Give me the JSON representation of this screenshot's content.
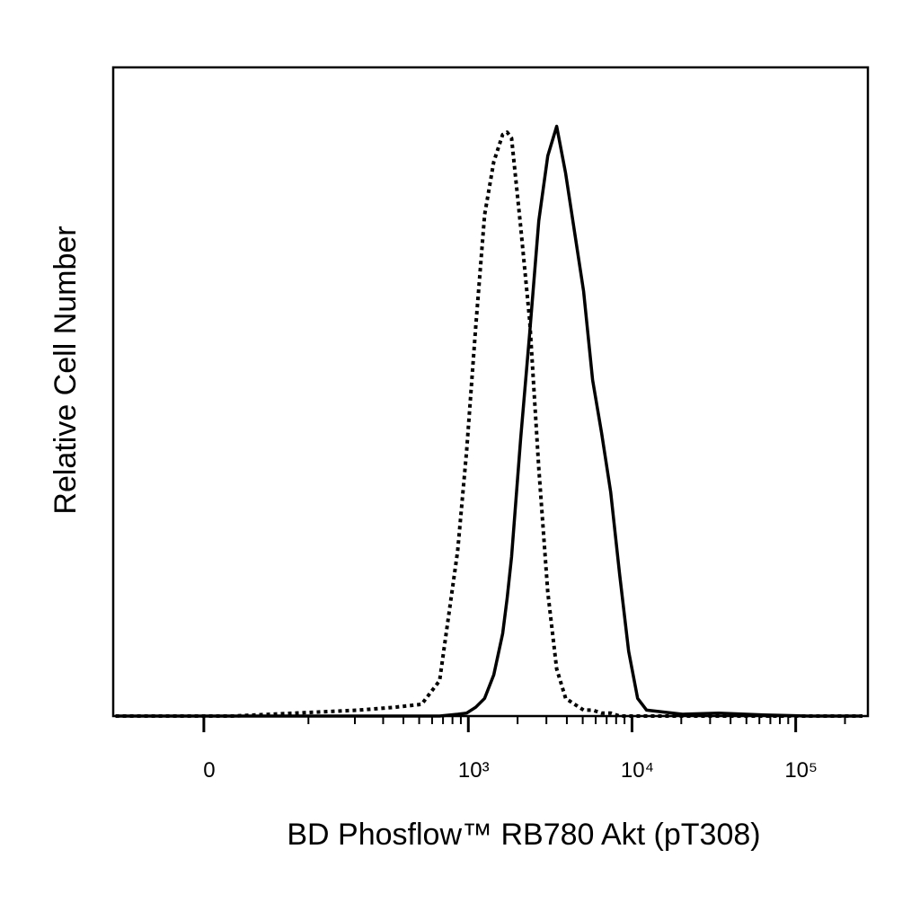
{
  "chart_data": {
    "type": "line",
    "x_label": "BD Phosflow™ RB780 Akt (pT308)",
    "y_label": "Relative Cell Number",
    "xscale": "asinh",
    "xscale_cofactor": 48.5,
    "xlim": [
      -80,
      276000
    ],
    "ylim": [
      0,
      110
    ],
    "xticks": [
      0,
      {
        "value": 1000,
        "label": "10³"
      },
      {
        "value": 10000,
        "label": "10⁴"
      },
      {
        "value": 100000,
        "label": "10⁵"
      }
    ],
    "xminorticks": [
      100,
      200,
      300,
      400,
      500,
      600,
      700,
      800,
      900,
      2000,
      3000,
      4000,
      5000,
      6000,
      7000,
      8000,
      9000,
      20000,
      30000,
      40000,
      50000,
      60000,
      70000,
      80000,
      90000,
      200000
    ],
    "x": [
      -77,
      -18,
      20,
      81,
      211,
      354,
      518,
      667,
      860,
      977,
      1109,
      1258,
      1430,
      1621,
      1727,
      1837,
      2088,
      2372,
      2694,
      3057,
      3465,
      3933,
      4463,
      5065,
      5748,
      6523,
      7405,
      8403,
      9540,
      10820,
      12280,
      20380,
      33800,
      63600,
      120000,
      256000
    ],
    "series": [
      {
        "color": "#000000",
        "dash": "dotted",
        "values": [
          0,
          0,
          0,
          0.5,
          1,
          1.5,
          2,
          6,
          28,
          45,
          66,
          85,
          94,
          98.6,
          99,
          98,
          83,
          67,
          42,
          21,
          8,
          3,
          2,
          1,
          1,
          0.5,
          0.5,
          0,
          0,
          0,
          0,
          0,
          0,
          0,
          0,
          0
        ]
      },
      {
        "color": "#000000",
        "dash": "solid",
        "values": [
          0,
          0,
          0,
          0,
          0,
          0,
          0,
          0,
          0.3,
          0.5,
          1.5,
          3,
          7,
          14,
          20,
          27,
          47,
          65,
          84,
          95,
          100,
          92,
          82,
          72,
          57,
          48,
          38,
          24,
          11,
          3,
          1,
          0.3,
          0.5,
          0.2,
          0,
          0
        ]
      }
    ]
  }
}
